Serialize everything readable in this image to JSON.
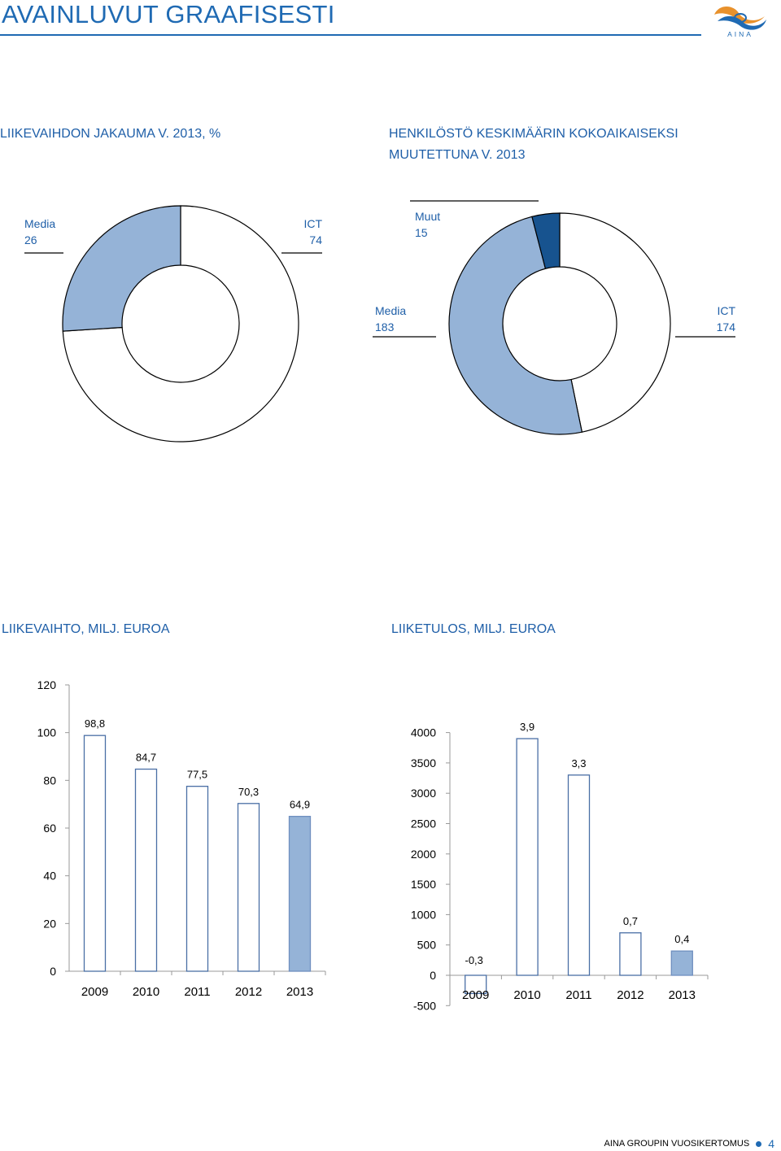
{
  "header": {
    "title": "AVAINLUVUT GRAAFISESTI",
    "logo_text": "AINA"
  },
  "colors": {
    "accent": "#1f6ab3",
    "light_blue": "#95b3d7",
    "dark_blue": "#17538f",
    "white": "#ffffff"
  },
  "sections": {
    "revenue_split_title": "LIIKEVAIHDON JAKAUMA V. 2013, %",
    "staff_title_line1": "HENKILÖSTÖ KESKIMÄÄRIN KOKOAIKAISEKSI",
    "staff_title_line2": "MUUTETTUNA V. 2013",
    "revenue_title": "LIIKEVAIHTO, MILJ.  EUROA",
    "profit_title": "LIIKETULOS, MILJ. EUROA"
  },
  "footer": {
    "text": "AINA GROUPIN VUOSIKERTOMUS",
    "page": "4"
  },
  "chart_data": [
    {
      "type": "pie",
      "title": "LIIKEVAIHDON JAKAUMA V. 2013, %",
      "slices": [
        {
          "label": "ICT",
          "value": 74,
          "color": "#ffffff"
        },
        {
          "label": "Media",
          "value": 26,
          "color": "#95b3d7"
        }
      ]
    },
    {
      "type": "pie",
      "title": "HENKILÖSTÖ KESKIMÄÄRIN KOKOAIKAISEKSI MUUTETTUNA V. 2013",
      "slices": [
        {
          "label": "ICT",
          "value": 174,
          "color": "#ffffff"
        },
        {
          "label": "Media",
          "value": 183,
          "color": "#95b3d7"
        },
        {
          "label": "Muut",
          "value": 15,
          "color": "#17538f"
        }
      ]
    },
    {
      "type": "bar",
      "title": "LIIKEVAIHTO, MILJ.  EUROA",
      "categories": [
        "2009",
        "2010",
        "2011",
        "2012",
        "2013"
      ],
      "values": [
        98.8,
        84.7,
        77.5,
        70.3,
        64.9
      ],
      "data_labels": [
        "98,8",
        "84,7",
        "77,5",
        "70,3",
        "64,9"
      ],
      "ylim": [
        0,
        120
      ],
      "yticks": [
        0,
        20,
        40,
        60,
        80,
        100,
        120
      ],
      "highlight_last": true
    },
    {
      "type": "bar",
      "title": "LIIKETULOS, MILJ. EUROA",
      "categories": [
        "2009",
        "2010",
        "2011",
        "2012",
        "2013"
      ],
      "values": [
        -0.3,
        3.9,
        3.3,
        0.7,
        0.4
      ],
      "data_labels": [
        "-0,3",
        "3,9",
        "3,3",
        "0,7",
        "0,4"
      ],
      "ytick_labels": [
        "-500",
        "0",
        "500",
        "1000",
        "1500",
        "2000",
        "2500",
        "3000",
        "3500",
        "4000"
      ],
      "ylim": [
        -0.5,
        4.0
      ],
      "highlight_last": true
    }
  ]
}
